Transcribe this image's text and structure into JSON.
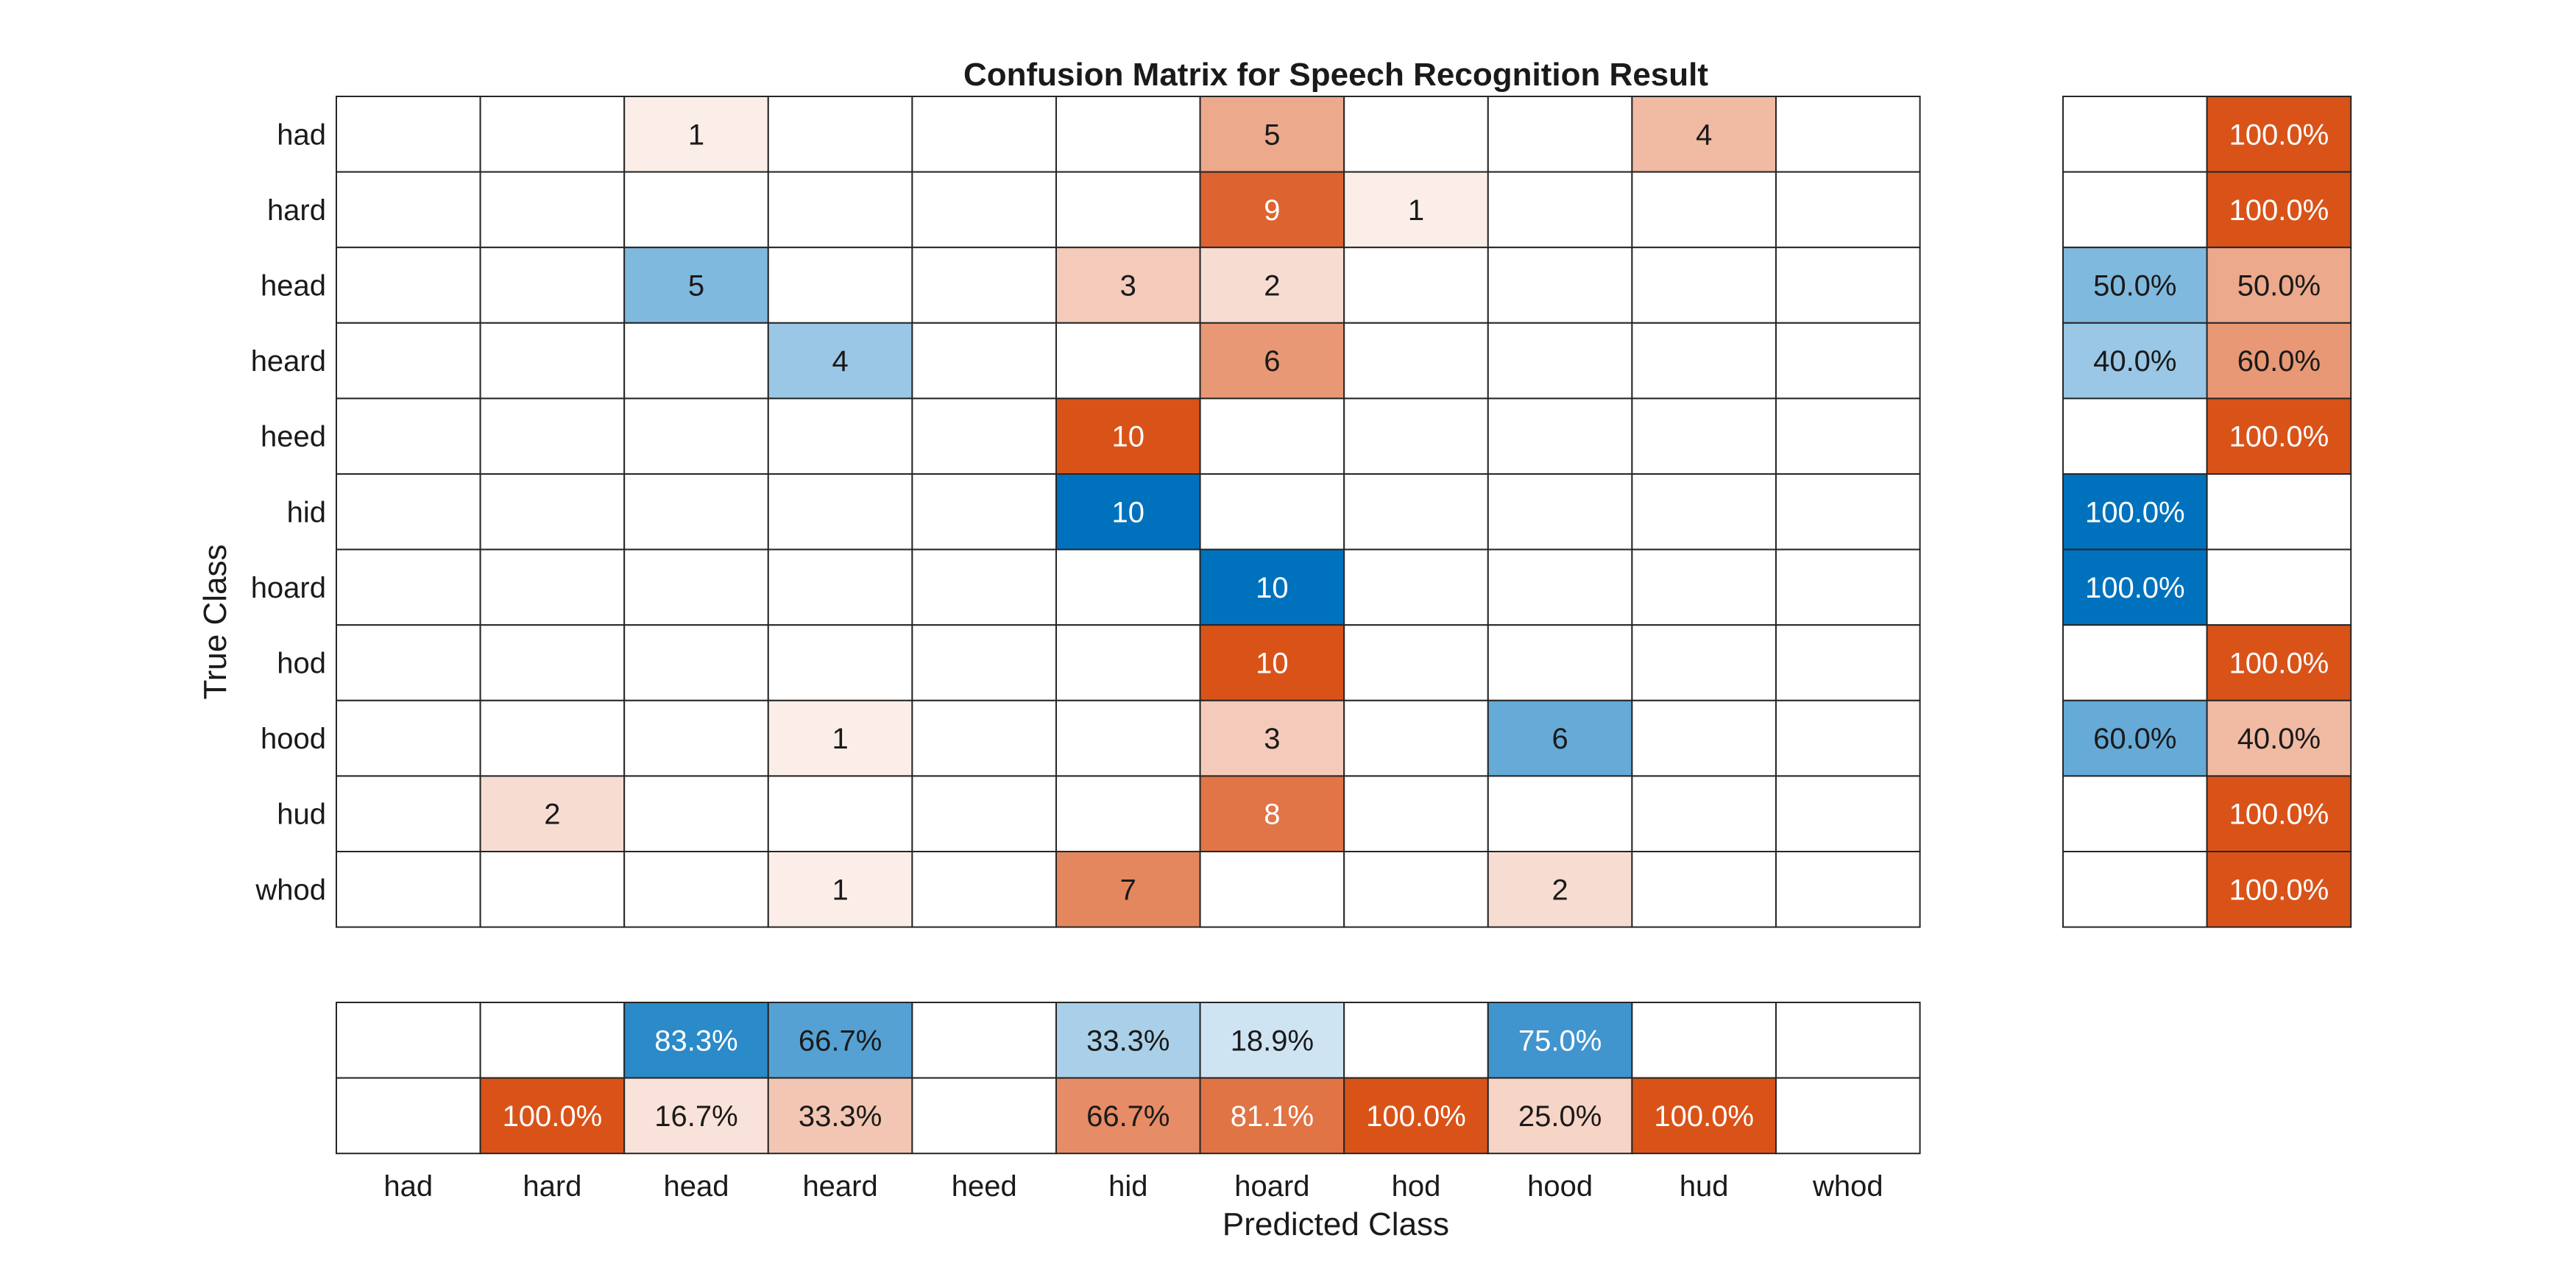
{
  "chart_data": {
    "type": "heatmap",
    "title": "Confusion Matrix for Speech Recognition Result",
    "xlabel": "Predicted Class",
    "ylabel": "True Class",
    "classes": [
      "had",
      "hard",
      "head",
      "heard",
      "heed",
      "hid",
      "hoard",
      "hod",
      "hood",
      "hud",
      "whod"
    ],
    "matrix": [
      [
        0,
        0,
        1,
        0,
        0,
        0,
        5,
        0,
        0,
        4,
        0
      ],
      [
        0,
        0,
        0,
        0,
        0,
        0,
        9,
        1,
        0,
        0,
        0
      ],
      [
        0,
        0,
        5,
        0,
        0,
        3,
        2,
        0,
        0,
        0,
        0
      ],
      [
        0,
        0,
        0,
        4,
        0,
        0,
        6,
        0,
        0,
        0,
        0
      ],
      [
        0,
        0,
        0,
        0,
        0,
        10,
        0,
        0,
        0,
        0,
        0
      ],
      [
        0,
        0,
        0,
        0,
        0,
        10,
        0,
        0,
        0,
        0,
        0
      ],
      [
        0,
        0,
        0,
        0,
        0,
        0,
        10,
        0,
        0,
        0,
        0
      ],
      [
        0,
        0,
        0,
        0,
        0,
        0,
        10,
        0,
        0,
        0,
        0
      ],
      [
        0,
        0,
        0,
        1,
        0,
        0,
        3,
        0,
        6,
        0,
        0
      ],
      [
        0,
        2,
        0,
        0,
        0,
        0,
        8,
        0,
        0,
        0,
        0
      ],
      [
        0,
        0,
        0,
        1,
        0,
        7,
        0,
        0,
        2,
        0,
        0
      ]
    ],
    "row_summary": [
      [
        "",
        "100.0%"
      ],
      [
        "",
        "100.0%"
      ],
      [
        "50.0%",
        "50.0%"
      ],
      [
        "40.0%",
        "60.0%"
      ],
      [
        "",
        "100.0%"
      ],
      [
        "100.0%",
        ""
      ],
      [
        "100.0%",
        ""
      ],
      [
        "",
        "100.0%"
      ],
      [
        "60.0%",
        "40.0%"
      ],
      [
        "",
        "100.0%"
      ],
      [
        "",
        "100.0%"
      ]
    ],
    "column_summary": {
      "correct": [
        "",
        "",
        "83.3%",
        "66.7%",
        "",
        "33.3%",
        "18.9%",
        "",
        "75.0%",
        "",
        ""
      ],
      "incorrect": [
        "",
        "100.0%",
        "16.7%",
        "33.3%",
        "",
        "66.7%",
        "81.1%",
        "100.0%",
        "25.0%",
        "100.0%",
        ""
      ]
    },
    "colors": {
      "correct": "#0072bd",
      "incorrect": "#d95319",
      "grid": "#262626",
      "text_dark": "#1a1a1a",
      "text_light": "#ffffff"
    }
  }
}
